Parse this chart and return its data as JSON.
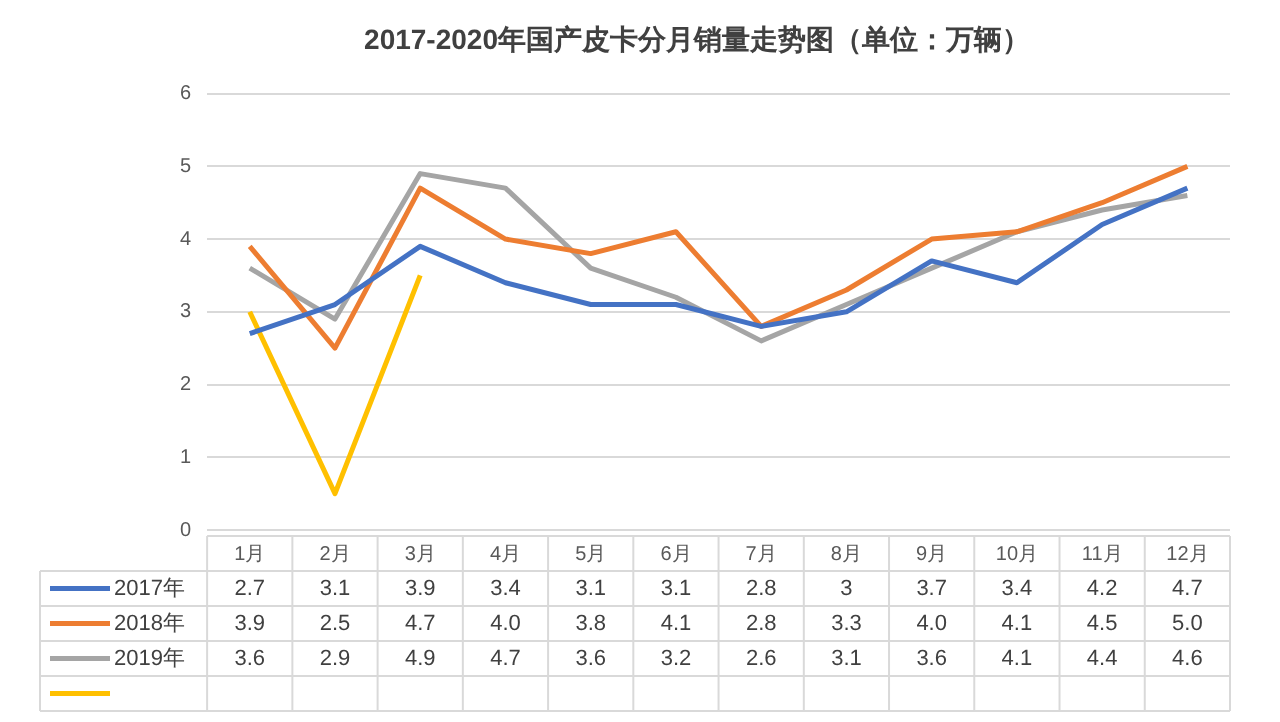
{
  "chart_data": {
    "type": "line",
    "title": "2017-2020年国产皮卡分月销量走势图（单位：万辆）",
    "categories": [
      "1月",
      "2月",
      "3月",
      "4月",
      "5月",
      "6月",
      "7月",
      "8月",
      "9月",
      "10月",
      "11月",
      "12月"
    ],
    "series": [
      {
        "name": "2017年",
        "color": "#4472c4",
        "values": [
          2.7,
          3.1,
          3.9,
          3.4,
          3.1,
          3.1,
          2.8,
          3,
          3.7,
          3.4,
          4.2,
          4.7
        ],
        "value_labels": [
          "2.7",
          "3.1",
          "3.9",
          "3.4",
          "3.1",
          "3.1",
          "2.8",
          "3",
          "3.7",
          "3.4",
          "4.2",
          "4.7"
        ]
      },
      {
        "name": "2018年",
        "color": "#ed7d31",
        "values": [
          3.9,
          2.5,
          4.7,
          4.0,
          3.8,
          4.1,
          2.8,
          3.3,
          4.0,
          4.1,
          4.5,
          5.0
        ],
        "value_labels": [
          "3.9",
          "2.5",
          "4.7",
          "4.0",
          "3.8",
          "4.1",
          "2.8",
          "3.3",
          "4.0",
          "4.1",
          "4.5",
          "5.0"
        ]
      },
      {
        "name": "2019年",
        "color": "#a5a5a5",
        "values": [
          3.6,
          2.9,
          4.9,
          4.7,
          3.6,
          3.2,
          2.6,
          3.1,
          3.6,
          4.1,
          4.4,
          4.6
        ],
        "value_labels": [
          "3.6",
          "2.9",
          "4.9",
          "4.7",
          "3.6",
          "3.2",
          "2.6",
          "3.1",
          "3.6",
          "4.1",
          "4.4",
          "4.6"
        ]
      },
      {
        "color": "#ffc000",
        "values": [
          3.0,
          0.5,
          3.5,
          null,
          null,
          null,
          null,
          null,
          null,
          null,
          null,
          null
        ]
      }
    ],
    "ylim": [
      0,
      6
    ],
    "yticks": [
      0,
      1,
      2,
      3,
      4,
      5,
      6
    ],
    "grid": "y",
    "legend": "bottom"
  }
}
